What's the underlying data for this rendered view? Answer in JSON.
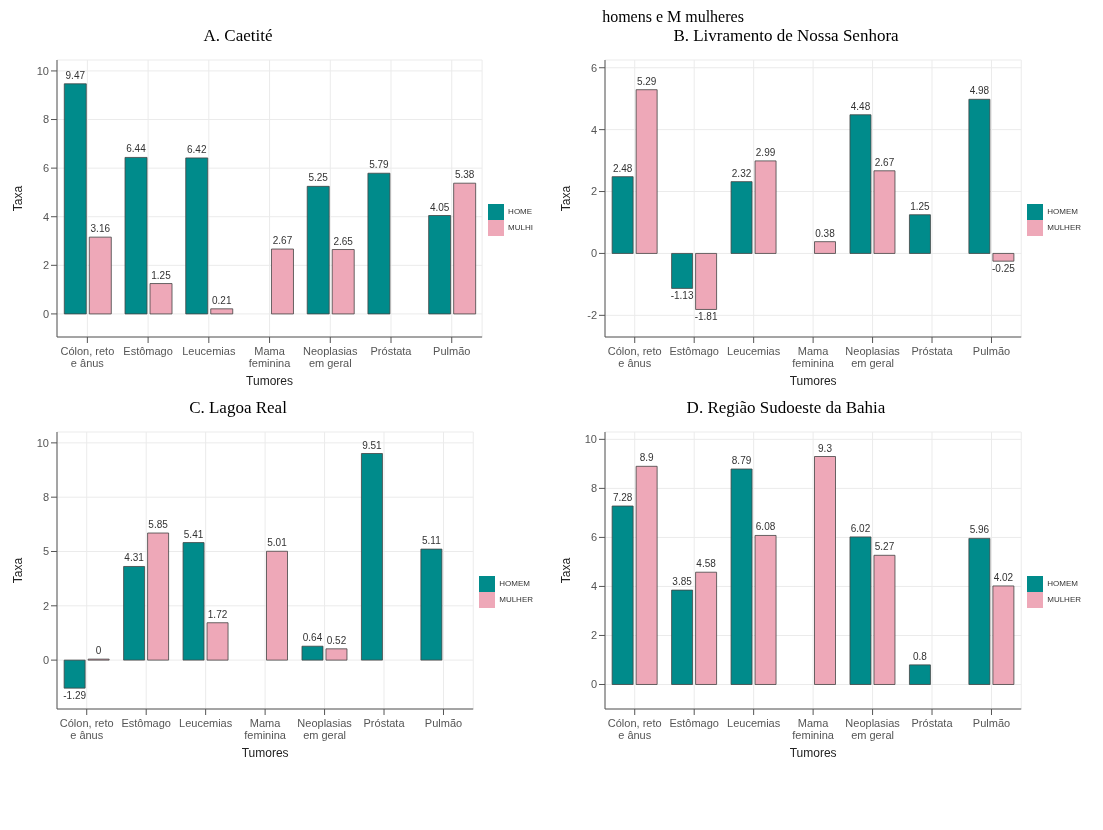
{
  "chart_data": [
    {
      "type": "bar",
      "title": "A. Caetité",
      "xlabel": "Tumores",
      "ylabel": "Taxa",
      "annotations": [
        "homens e M mulheres"
      ],
      "categories": [
        "Cólon, reto e ânus",
        "Estômago",
        "Leucemias",
        "Mama feminina",
        "Neoplasias em geral",
        "Próstata",
        "Pulmão"
      ],
      "series": [
        {
          "name": "HOME",
          "color": "#008b8b",
          "values": [
            9.47,
            6.44,
            6.42,
            null,
            5.25,
            5.79,
            4.05
          ]
        },
        {
          "name": "MULHI",
          "color": "#eea8b8",
          "values": [
            3.16,
            1.25,
            0.21,
            2.67,
            2.65,
            null,
            5.38
          ]
        }
      ],
      "ylim": [
        -0.95,
        10.45
      ],
      "yticks": [
        0,
        2,
        4,
        6,
        8,
        10
      ],
      "grid": true,
      "legend": "right",
      "data_labels": true
    },
    {
      "type": "bar",
      "title": "B. Livramento de Nossa Senhora",
      "xlabel": "Tumores",
      "ylabel": "Taxa",
      "categories": [
        "Cólon, reto e ânus",
        "Estômago",
        "Leucemias",
        "Mama feminina",
        "Neoplasias em geral",
        "Próstata",
        "Pulmão"
      ],
      "series": [
        {
          "name": "HOMEM",
          "color": "#008b8b",
          "values": [
            2.48,
            -1.13,
            2.32,
            null,
            4.48,
            1.25,
            4.98
          ]
        },
        {
          "name": "MULHER",
          "color": "#eea8b8",
          "values": [
            5.29,
            -1.81,
            2.99,
            0.38,
            2.67,
            null,
            -0.25
          ]
        }
      ],
      "ylim": [
        -2.7,
        6.25
      ],
      "yticks": [
        -2,
        0,
        2,
        4,
        6
      ],
      "grid": true,
      "legend": "right",
      "data_labels": true
    },
    {
      "type": "bar",
      "title": "C. Lagoa Real",
      "xlabel": "Tumores",
      "ylabel": "Taxa",
      "categories": [
        "Cólon, reto e ânus",
        "Estômago",
        "Leucemias",
        "Mama feminina",
        "Neoplasias em geral",
        "Próstata",
        "Pulmão"
      ],
      "series": [
        {
          "name": "HOMEM",
          "color": "#008b8b",
          "values": [
            -1.29,
            4.31,
            5.41,
            null,
            0.64,
            9.51,
            5.11
          ]
        },
        {
          "name": "MULHER",
          "color": "#eea8b8",
          "values": [
            0,
            5.85,
            1.72,
            5.01,
            0.52,
            null,
            null
          ]
        }
      ],
      "ylim": [
        -2.25,
        10.5
      ],
      "yticks": [
        0,
        {
          "value": 2.5,
          "label": "2"
        },
        5,
        {
          "value": 7.5,
          "label": "8"
        },
        10
      ],
      "grid": true,
      "legend": "right",
      "data_labels": true
    },
    {
      "type": "bar",
      "title": "D. Região Sudoeste da Bahia",
      "xlabel": "Tumores",
      "ylabel": "Taxa",
      "categories": [
        "Cólon, reto e ânus",
        "Estômago",
        "Leucemias",
        "Mama feminina",
        "Neoplasias em geral",
        "Próstata",
        "Pulmão"
      ],
      "series": [
        {
          "name": "HOMEM",
          "color": "#008b8b",
          "values": [
            7.28,
            3.85,
            8.79,
            null,
            6.02,
            0.8,
            5.96
          ]
        },
        {
          "name": "MULHER",
          "color": "#eea8b8",
          "values": [
            8.9,
            4.58,
            6.08,
            9.3,
            5.27,
            null,
            4.02
          ]
        }
      ],
      "ylim": [
        -1.0,
        10.3
      ],
      "yticks": [
        0,
        2,
        4,
        6,
        8,
        10
      ],
      "grid": true,
      "legend": "right",
      "data_labels": true
    }
  ]
}
